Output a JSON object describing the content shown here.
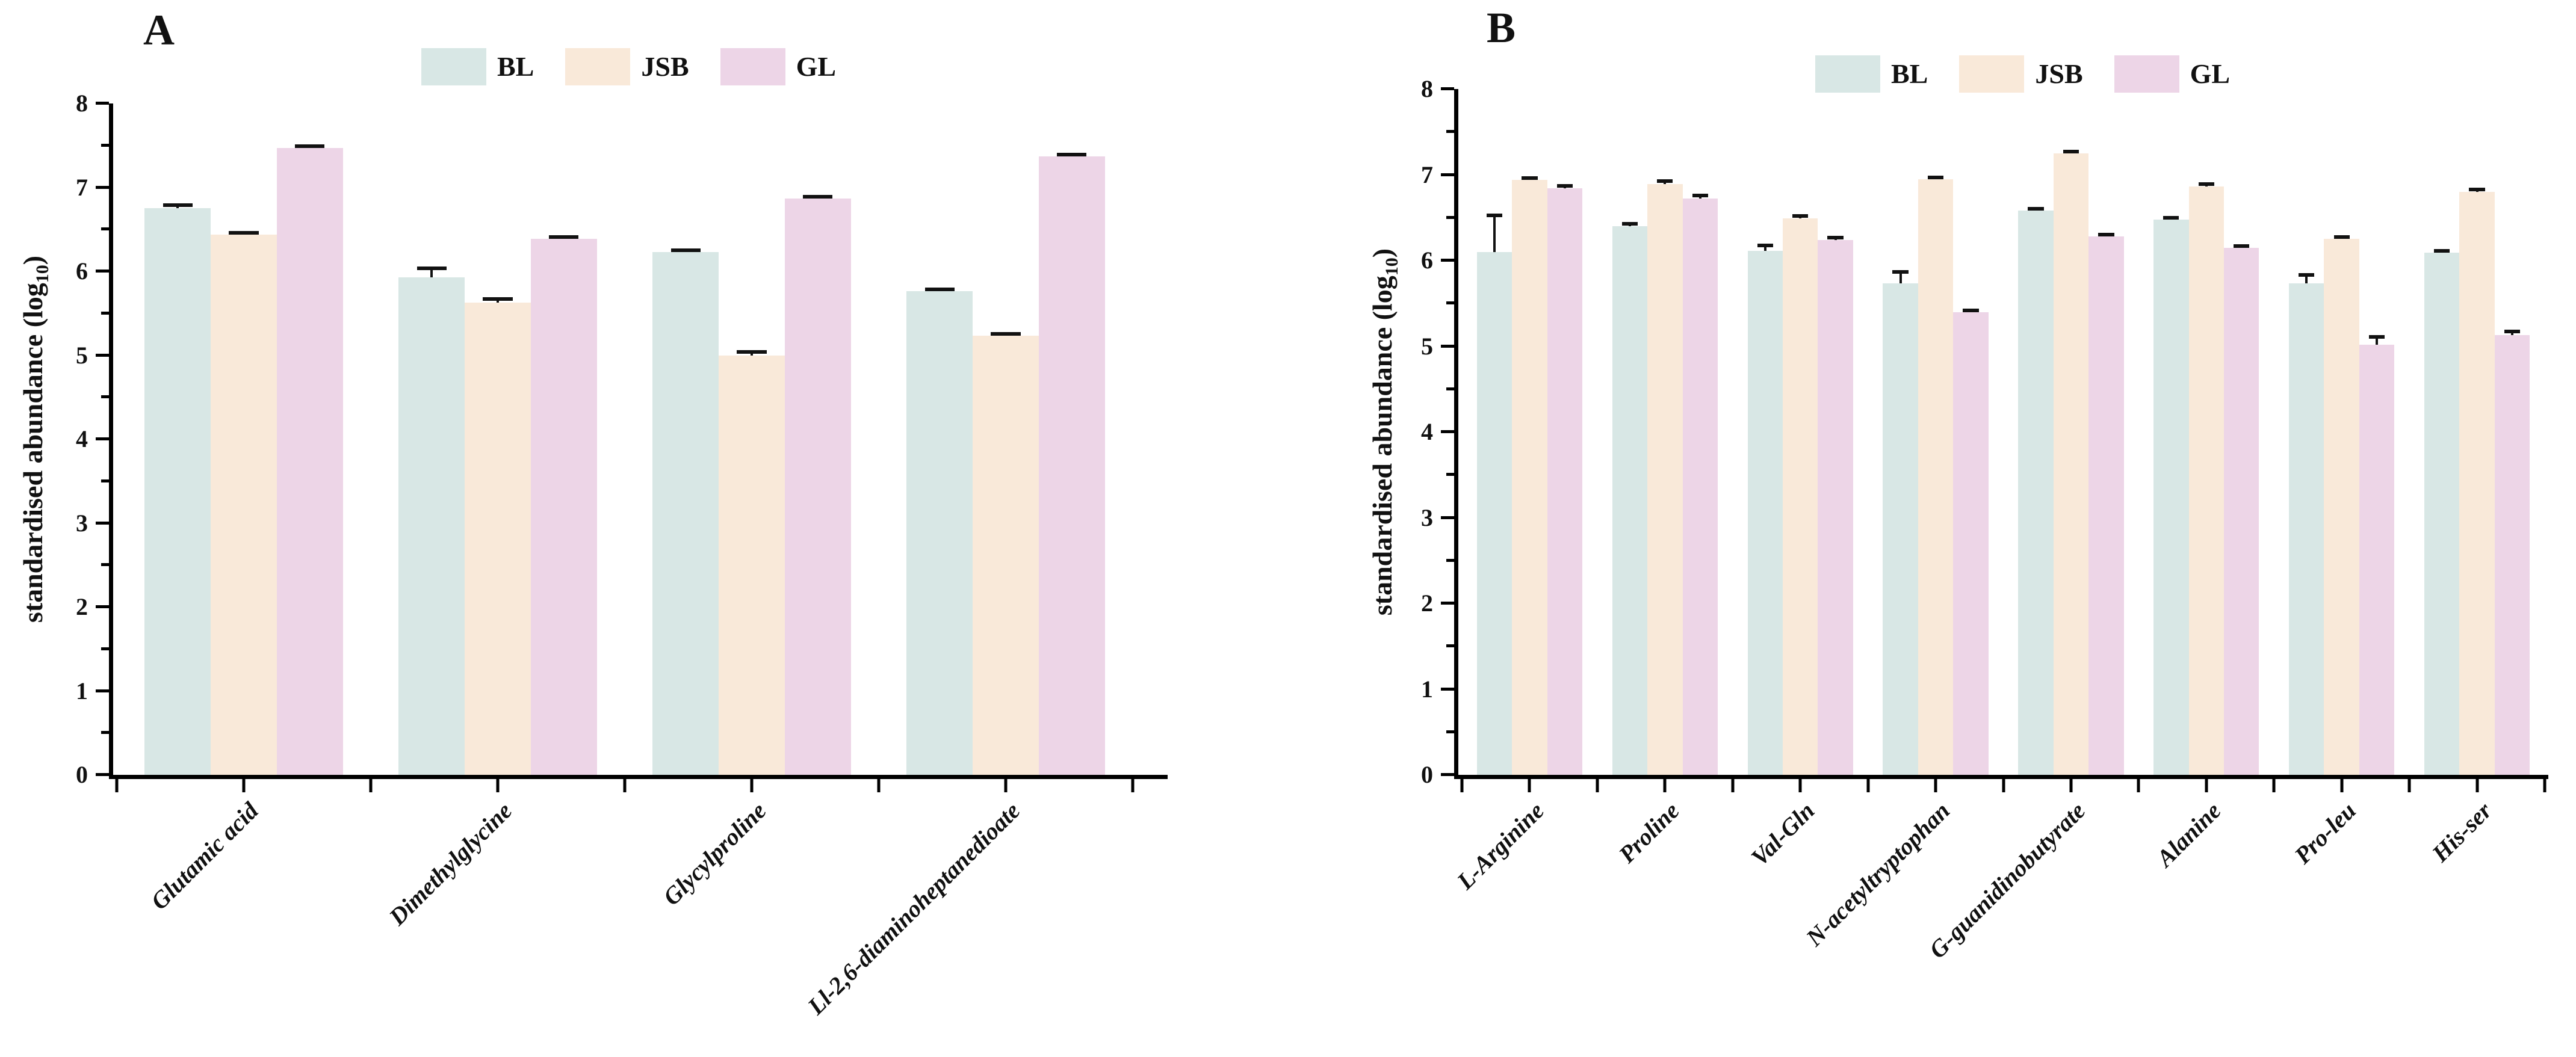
{
  "figure": {
    "background": "#ffffff",
    "series_colors": {
      "BL": "#d8e7e5",
      "JSB": "#f9e9d9",
      "GL": "#edd5e7"
    },
    "error_bar_color": "#111111"
  },
  "chart_data": [
    {
      "type": "bar",
      "title": "A",
      "ylabel": "standardised abundance (log10)",
      "ylabel_parts": {
        "pre": "standardised abundance (log",
        "sub": "10",
        "post": ")"
      },
      "ylim": [
        0,
        8
      ],
      "yticks": [
        0,
        1,
        2,
        3,
        4,
        5,
        6,
        7,
        8
      ],
      "grid": false,
      "legend_position": "top",
      "legend": [
        "BL",
        "JSB",
        "GL"
      ],
      "categories": [
        "Glutamic acid",
        "Dimethylglycine",
        "Glycylproline",
        "Ll-2,6-diaminoheptanedioate"
      ],
      "series": [
        {
          "name": "BL",
          "color": "#d8e7e5",
          "values": [
            6.75,
            5.93,
            6.23,
            5.76
          ],
          "errors": [
            0.06,
            0.13,
            0.03,
            0.05
          ]
        },
        {
          "name": "JSB",
          "color": "#f9e9d9",
          "values": [
            6.44,
            5.63,
            5.0,
            5.23
          ],
          "errors": [
            0.03,
            0.06,
            0.06,
            0.04
          ]
        },
        {
          "name": "GL",
          "color": "#edd5e7",
          "values": [
            7.47,
            6.39,
            6.87,
            7.37
          ],
          "errors": [
            0.03,
            0.02,
            0.03,
            0.03
          ]
        }
      ]
    },
    {
      "type": "bar",
      "title": "B",
      "ylabel": "standardised abundance (log10)",
      "ylabel_parts": {
        "pre": "standardised abundance (log",
        "sub": "10",
        "post": ")"
      },
      "ylim": [
        0,
        8
      ],
      "yticks": [
        0,
        1,
        2,
        3,
        4,
        5,
        6,
        7,
        8
      ],
      "grid": false,
      "legend_position": "top",
      "legend": [
        "BL",
        "JSB",
        "GL"
      ],
      "categories": [
        "L-Arginine",
        "Proline",
        "Val-Gln",
        "N-acetyltryptophan",
        "G-guanidinobutyrate",
        "Alanine",
        "Pro-leu",
        "His-ser"
      ],
      "series": [
        {
          "name": "BL",
          "color": "#d8e7e5",
          "values": [
            6.1,
            6.4,
            6.11,
            5.73,
            6.58,
            6.48,
            5.73,
            6.09
          ],
          "errors": [
            0.45,
            0.05,
            0.09,
            0.16,
            0.03,
            0.04,
            0.12,
            0.03
          ]
        },
        {
          "name": "JSB",
          "color": "#f9e9d9",
          "values": [
            6.94,
            6.89,
            6.49,
            6.95,
            7.25,
            6.86,
            6.25,
            6.8
          ],
          "errors": [
            0.04,
            0.06,
            0.05,
            0.03,
            0.02,
            0.05,
            0.03,
            0.05
          ]
        },
        {
          "name": "GL",
          "color": "#edd5e7",
          "values": [
            6.84,
            6.72,
            6.24,
            5.4,
            6.28,
            6.15,
            5.02,
            5.13
          ],
          "errors": [
            0.05,
            0.06,
            0.05,
            0.04,
            0.03,
            0.04,
            0.11,
            0.06
          ]
        }
      ]
    }
  ]
}
